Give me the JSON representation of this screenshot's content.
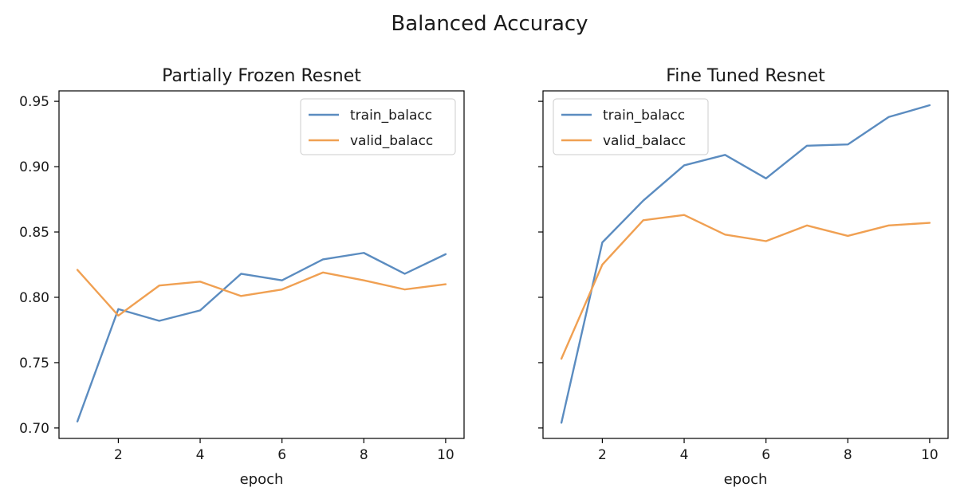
{
  "figure": {
    "title": "Balanced Accuracy"
  },
  "colors": {
    "train": "#5b8cc0",
    "valid": "#f0a052"
  },
  "chart_data": [
    {
      "type": "line",
      "title": "Partially Frozen Resnet",
      "xlabel": "epoch",
      "ylabel": "",
      "x": [
        1,
        2,
        3,
        4,
        5,
        6,
        7,
        8,
        9,
        10
      ],
      "xticks": [
        2,
        4,
        6,
        8,
        10
      ],
      "yticks": [
        0.7,
        0.75,
        0.8,
        0.85,
        0.9,
        0.95
      ],
      "xlim": [
        0.55,
        10.45
      ],
      "ylim": [
        0.692,
        0.958
      ],
      "grid": false,
      "legend": "upper right",
      "show_ytick_labels": true,
      "series": [
        {
          "name": "train_balacc",
          "color": "#5b8cc0",
          "values": [
            0.705,
            0.791,
            0.782,
            0.79,
            0.818,
            0.813,
            0.829,
            0.834,
            0.818,
            0.833
          ]
        },
        {
          "name": "valid_balacc",
          "color": "#f0a052",
          "values": [
            0.821,
            0.786,
            0.809,
            0.812,
            0.801,
            0.806,
            0.819,
            0.813,
            0.806,
            0.81
          ]
        }
      ]
    },
    {
      "type": "line",
      "title": "Fine Tuned Resnet",
      "xlabel": "epoch",
      "ylabel": "",
      "x": [
        1,
        2,
        3,
        4,
        5,
        6,
        7,
        8,
        9,
        10
      ],
      "xticks": [
        2,
        4,
        6,
        8,
        10
      ],
      "yticks": [
        0.7,
        0.75,
        0.8,
        0.85,
        0.9,
        0.95
      ],
      "xlim": [
        0.55,
        10.45
      ],
      "ylim": [
        0.692,
        0.958
      ],
      "grid": false,
      "legend": "upper left",
      "show_ytick_labels": false,
      "series": [
        {
          "name": "train_balacc",
          "color": "#5b8cc0",
          "values": [
            0.704,
            0.842,
            0.874,
            0.901,
            0.909,
            0.891,
            0.916,
            0.917,
            0.938,
            0.947
          ]
        },
        {
          "name": "valid_balacc",
          "color": "#f0a052",
          "values": [
            0.753,
            0.825,
            0.859,
            0.863,
            0.848,
            0.843,
            0.855,
            0.847,
            0.855,
            0.857
          ]
        }
      ]
    }
  ]
}
